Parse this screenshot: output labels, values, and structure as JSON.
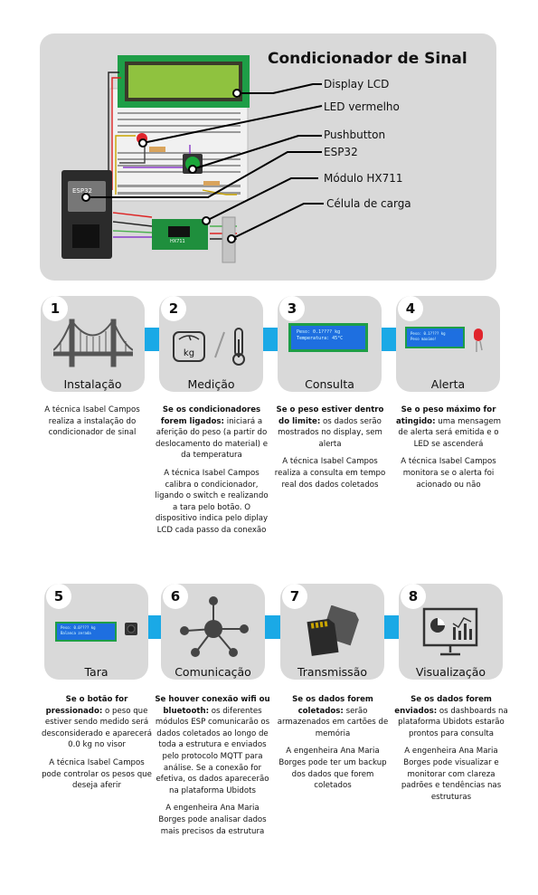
{
  "title": "Condicionador de Sinal",
  "components": [
    "Display LCD",
    "LED vermelho",
    "Pushbutton",
    "ESP32",
    "Módulo HX711",
    "Célula de carga"
  ],
  "lcd_small_texts": {
    "consulta_line1": "Peso: 0.1???? kg",
    "consulta_line2": "Temperatura: 45°C",
    "alerta_line1": "Peso: 0.1???? kg",
    "alerta_line2": "Peso maximo!",
    "tara_line1": "Peso: 0.0???? kg",
    "tara_line2": "Balanca zerada"
  },
  "module_labels": {
    "esp": "ESP32",
    "hx": "HX711"
  },
  "steps": [
    {
      "num": "1",
      "label": "Instalação",
      "desc": [
        {
          "bold": "",
          "text": "A técnica Isabel Campos realiza a instalação do condicionador de sinal"
        }
      ]
    },
    {
      "num": "2",
      "label": "Medição",
      "icon_text": "kg",
      "desc": [
        {
          "bold": "Se os condicionadores forem ligados:",
          "text": " iniciará a aferição do peso (a partir do deslocamento do material) e da temperatura"
        },
        {
          "bold": "",
          "text": "A técnica Isabel Campos calibra o condicionador, ligando o switch e realizando a tara pelo botão. O dispositivo indica pelo diplay LCD cada passo da conexão"
        }
      ]
    },
    {
      "num": "3",
      "label": "Consulta",
      "desc": [
        {
          "bold": "Se o peso estiver dentro do limite:",
          "text": " os dados serão mostrados no display, sem alerta"
        },
        {
          "bold": "",
          "text": "A técnica Isabel Campos realiza a consulta em tempo real dos dados coletados"
        }
      ]
    },
    {
      "num": "4",
      "label": "Alerta",
      "desc": [
        {
          "bold": "Se o peso máximo for atingido:",
          "text": " uma mensagem de alerta será emitida e o LED se ascenderá"
        },
        {
          "bold": "",
          "text": "A técnica Isabel Campos monitora se o alerta foi acionado ou não"
        }
      ]
    },
    {
      "num": "5",
      "label": "Tara",
      "desc": [
        {
          "bold": "Se o botão for pressionado:",
          "text": " o peso que estiver sendo medido será desconsiderado e aparecerá 0.0 kg no visor"
        },
        {
          "bold": "",
          "text": "A técnica Isabel Campos pode controlar os pesos que deseja aferir"
        }
      ]
    },
    {
      "num": "6",
      "label": "Comunicação",
      "desc": [
        {
          "bold": "Se houver conexão wifi ou bluetooth:",
          "text": " os diferentes módulos ESP comunicarão os dados coletados ao longo de toda a estrutura e enviados pelo protocolo MQTT para análise. Se a conexão for efetiva, os dados aparecerão na plataforma Ubidots"
        },
        {
          "bold": "",
          "text": "A engenheira Ana Maria Borges pode analisar dados mais precisos da estrutura"
        }
      ]
    },
    {
      "num": "7",
      "label": "Transmissão",
      "desc": [
        {
          "bold": "Se os dados forem coletados:",
          "text": " serão armazenados em cartões de memória"
        },
        {
          "bold": "",
          "text": "A engenheira Ana Maria Borges pode ter um backup dos dados que forem coletados"
        }
      ]
    },
    {
      "num": "8",
      "label": "Visualização",
      "desc": [
        {
          "bold": "Se os dados forem enviados:",
          "text": " os dashboards na plataforma Ubidots estarão prontos para consulta"
        },
        {
          "bold": "",
          "text": "A engenheira Ana Maria Borges pode visualizar e monitorar com clareza padrões e tendências nas estruturas"
        }
      ]
    }
  ],
  "colors": {
    "panel": "#d9d9d9",
    "accent": "#1aa9e6",
    "lcd_green": "#8fc23f",
    "lcd_blue": "#1e6fe0",
    "esp_dark": "#2b2b2b",
    "hx_green": "#1f8f3d",
    "led_red": "#e0242c"
  }
}
